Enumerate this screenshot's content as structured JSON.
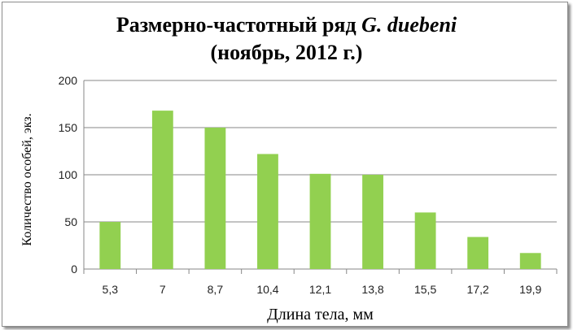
{
  "chart_data": {
    "type": "bar",
    "title_line1": "Размерно-частотный ряд",
    "title_italic": "G. duebeni",
    "title_line2": "(ноябрь, 2012 г.)",
    "xlabel": "Длина тела, мм",
    "ylabel": "Количество особей, экз.",
    "categories": [
      "5,3",
      "7",
      "8,7",
      "10,4",
      "12,1",
      "13,8",
      "15,5",
      "17,2",
      "19,9"
    ],
    "values": [
      50,
      168,
      150,
      122,
      101,
      100,
      60,
      34,
      17
    ],
    "ylim": [
      0,
      200
    ],
    "yticks": [
      0,
      50,
      100,
      150,
      200
    ],
    "grid": true,
    "bar_color": "#92d050"
  }
}
